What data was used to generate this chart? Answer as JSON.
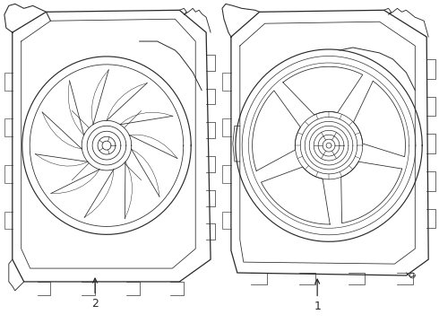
{
  "background_color": "#ffffff",
  "line_color": "#2a2a2a",
  "line_width": 0.7,
  "label_1": "1",
  "label_2": "2",
  "figsize": [
    4.9,
    3.6
  ],
  "dpi": 100
}
